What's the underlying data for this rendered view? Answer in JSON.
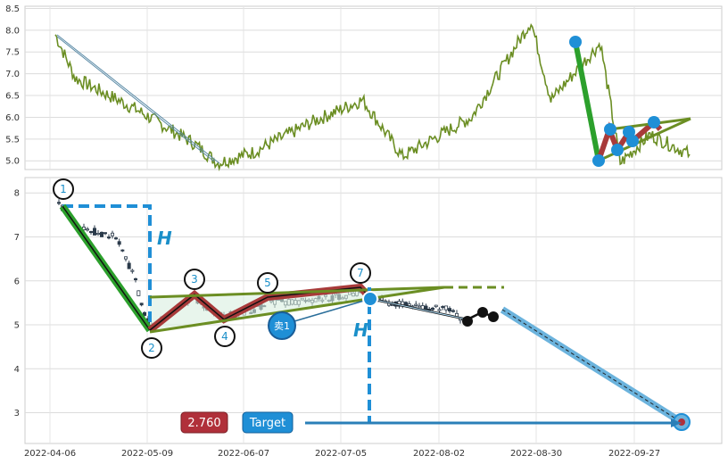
{
  "colors": {
    "price_line": "#6b8e23",
    "pattern_green": "#2ca02c",
    "pattern_red": "#a83a3a",
    "olive": "#6b8e23",
    "marker_blue": "#1f8fd6",
    "dashed_blue": "#1f8fd6",
    "target_badge_red": "#b0303a",
    "target_badge_blue": "#1f8fd6",
    "grid": "#dcdcdc"
  },
  "top_chart": {
    "y_ticks": [
      "8.5",
      "8.0",
      "7.5",
      "7.0",
      "6.5",
      "6.0",
      "5.5",
      "5.0"
    ],
    "ylim": [
      4.8,
      8.55
    ]
  },
  "bottom_chart": {
    "y_ticks": [
      "8",
      "7",
      "6",
      "5",
      "4",
      "3"
    ],
    "ylim": [
      2.3,
      8.35
    ],
    "x_ticks": [
      "2022-04-06",
      "2022-05-09",
      "2022-06-07",
      "2022-07-05",
      "2022-08-02",
      "2022-08-30",
      "2022-09-27"
    ],
    "h_label_1": "H",
    "h_label_2": "H",
    "point_labels": [
      "1",
      "2",
      "3",
      "4",
      "5",
      "7"
    ],
    "sell_label": "卖1",
    "target_value": "2.760",
    "target_label": "Target"
  },
  "chart_data": [
    {
      "type": "line",
      "panel": "top",
      "x_unit": "day",
      "ylim": [
        4.8,
        8.55
      ],
      "key_points": [
        {
          "x": 0,
          "y": 7.9
        },
        {
          "x": 10,
          "y": 6.9
        },
        {
          "x": 40,
          "y": 6.2
        },
        {
          "x": 70,
          "y": 5.4
        },
        {
          "x": 82,
          "y": 4.95
        },
        {
          "x": 100,
          "y": 5.2
        },
        {
          "x": 130,
          "y": 5.9
        },
        {
          "x": 155,
          "y": 6.4
        },
        {
          "x": 175,
          "y": 5.1
        },
        {
          "x": 210,
          "y": 6.0
        },
        {
          "x": 240,
          "y": 8.2
        },
        {
          "x": 250,
          "y": 6.4
        },
        {
          "x": 275,
          "y": 7.7
        },
        {
          "x": 285,
          "y": 4.95
        },
        {
          "x": 300,
          "y": 5.6
        },
        {
          "x": 320,
          "y": 5.15
        }
      ]
    },
    {
      "type": "candlestick",
      "panel": "bottom",
      "ylim": [
        2.3,
        8.35
      ],
      "pattern_points": [
        {
          "label": "1",
          "date": "2022-04-09",
          "y": 7.75
        },
        {
          "label": "2",
          "date": "2022-05-09",
          "y": 4.85
        },
        {
          "label": "3",
          "date": "2022-05-21",
          "y": 5.65
        },
        {
          "label": "4",
          "date": "2022-06-01",
          "y": 5.15
        },
        {
          "label": "5",
          "date": "2022-06-15",
          "y": 5.6
        },
        {
          "label": "7",
          "date": "2022-07-03",
          "y": 5.8
        }
      ],
      "sell_point": {
        "label": "卖1",
        "date": "2022-06-18",
        "y": 4.95
      },
      "target": {
        "value": 2.76,
        "date": "2022-10-04"
      }
    }
  ]
}
